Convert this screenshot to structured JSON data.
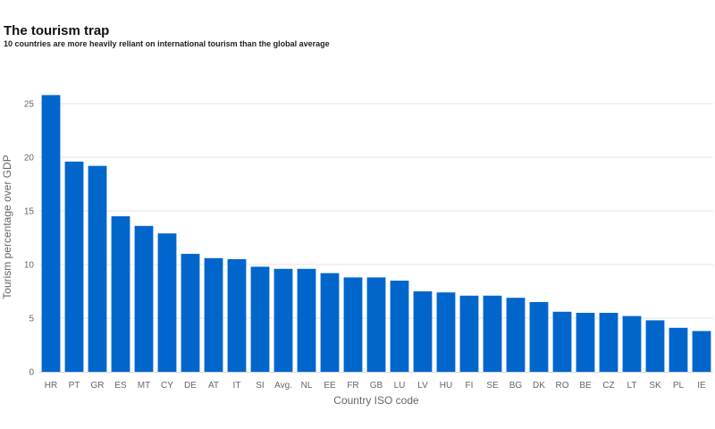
{
  "chart_data": {
    "type": "bar",
    "title": "The tourism trap",
    "subtitle": "10 countries are more heavily reliant on international tourism than the global average",
    "xlabel": "Country ISO code",
    "ylabel": "Tourism percentage over GDP",
    "categories": [
      "HR",
      "PT",
      "GR",
      "ES",
      "MT",
      "CY",
      "DE",
      "AT",
      "IT",
      "SI",
      "Avg.",
      "NL",
      "EE",
      "FR",
      "GB",
      "LU",
      "LV",
      "HU",
      "FI",
      "SE",
      "BG",
      "DK",
      "RO",
      "BE",
      "CZ",
      "LT",
      "SK",
      "PL",
      "IE"
    ],
    "values": [
      25.8,
      19.6,
      19.2,
      14.5,
      13.6,
      12.9,
      11.0,
      10.6,
      10.5,
      9.8,
      9.6,
      9.6,
      9.2,
      8.8,
      8.8,
      8.5,
      7.5,
      7.4,
      7.1,
      7.1,
      6.9,
      6.5,
      5.6,
      5.5,
      5.5,
      5.2,
      4.8,
      4.1,
      3.8
    ],
    "yticks": [
      0,
      5,
      10,
      15,
      20,
      25
    ],
    "ylim": [
      0,
      27
    ],
    "grid": true,
    "legend": "none",
    "bar_color": "#0066cc",
    "grid_color": "#e6e6e6",
    "axis_color": "#ccd6eb"
  }
}
